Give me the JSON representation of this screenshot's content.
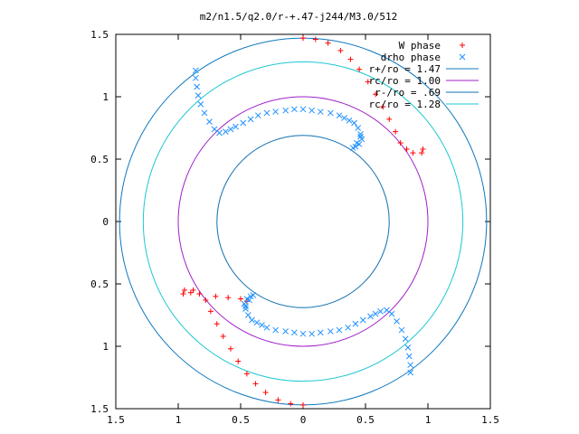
{
  "chart_data": {
    "type": "scatter",
    "title": "m2/n1.5/q2.0/r-+.47-j244/M3.0/512",
    "xlabel": "",
    "ylabel": "",
    "xlim": [
      -1.5,
      1.5
    ],
    "ylim": [
      -1.5,
      1.5
    ],
    "grid": false,
    "legend_position": "top-right",
    "x_tick_labels": [
      "1.5",
      "1",
      "0.5",
      "0",
      "0.5",
      "1",
      "1.5"
    ],
    "x_tick_values": [
      -1.5,
      -1,
      -0.5,
      0,
      0.5,
      1,
      1.5
    ],
    "y_tick_labels": [
      "1.5",
      "1",
      "0.5",
      "0",
      "0.5",
      "1",
      "1.5"
    ],
    "y_tick_values": [
      1.5,
      1,
      0.5,
      0,
      -0.5,
      -1,
      -1.5
    ],
    "circles": [
      {
        "name": "r+/ro = 1.47",
        "radius": 1.47,
        "color": "#0f78be"
      },
      {
        "name": "rc/ro = 1.00",
        "radius": 1.0,
        "color": "#a020c8"
      },
      {
        "name": "r-/ro = .69",
        "radius": 0.69,
        "color": "#0f6fb0"
      },
      {
        "name": "rc/ro = 1.28",
        "radius": 1.28,
        "color": "#1ec8d2"
      }
    ],
    "series": [
      {
        "name": "W phase",
        "marker": "+",
        "color": "#ff0000",
        "points": [
          [
            0.0,
            1.47
          ],
          [
            0.1,
            1.46
          ],
          [
            0.2,
            1.43
          ],
          [
            0.3,
            1.37
          ],
          [
            0.38,
            1.3
          ],
          [
            0.45,
            1.22
          ],
          [
            0.52,
            1.12
          ],
          [
            0.58,
            1.02
          ],
          [
            0.64,
            0.92
          ],
          [
            0.69,
            0.82
          ],
          [
            0.74,
            0.72
          ],
          [
            0.78,
            0.63
          ],
          [
            0.83,
            0.58
          ],
          [
            0.88,
            0.55
          ],
          [
            0.95,
            0.55
          ],
          [
            0.96,
            0.58
          ],
          [
            0.0,
            -1.47
          ],
          [
            -0.1,
            -1.46
          ],
          [
            -0.2,
            -1.43
          ],
          [
            -0.3,
            -1.37
          ],
          [
            -0.38,
            -1.3
          ],
          [
            -0.45,
            -1.22
          ],
          [
            -0.52,
            -1.12
          ],
          [
            -0.58,
            -1.02
          ],
          [
            -0.64,
            -0.92
          ],
          [
            -0.69,
            -0.82
          ],
          [
            -0.74,
            -0.72
          ],
          [
            -0.78,
            -0.63
          ],
          [
            -0.83,
            -0.58
          ],
          [
            -0.88,
            -0.55
          ],
          [
            -0.95,
            -0.55
          ],
          [
            -0.96,
            -0.58
          ],
          [
            -0.5,
            -0.62
          ],
          [
            -0.6,
            -0.61
          ],
          [
            -0.7,
            -0.6
          ],
          [
            -0.9,
            -0.57
          ],
          [
            -0.45,
            -0.64
          ]
        ]
      },
      {
        "name": "drho phase",
        "marker": "x",
        "color": "#1e90ff",
        "points": [
          [
            -0.86,
            1.21
          ],
          [
            -0.86,
            1.15
          ],
          [
            -0.85,
            1.08
          ],
          [
            -0.84,
            1.01
          ],
          [
            -0.82,
            0.94
          ],
          [
            -0.79,
            0.87
          ],
          [
            -0.75,
            0.8
          ],
          [
            -0.71,
            0.74
          ],
          [
            -0.67,
            0.71
          ],
          [
            -0.62,
            0.72
          ],
          [
            -0.58,
            0.74
          ],
          [
            -0.54,
            0.76
          ],
          [
            -0.48,
            0.79
          ],
          [
            -0.42,
            0.82
          ],
          [
            -0.36,
            0.85
          ],
          [
            -0.29,
            0.87
          ],
          [
            -0.22,
            0.88
          ],
          [
            -0.14,
            0.89
          ],
          [
            -0.07,
            0.9
          ],
          [
            0.0,
            0.9
          ],
          [
            0.07,
            0.89
          ],
          [
            0.14,
            0.88
          ],
          [
            0.22,
            0.87
          ],
          [
            0.29,
            0.85
          ],
          [
            0.33,
            0.83
          ],
          [
            0.37,
            0.81
          ],
          [
            0.41,
            0.79
          ],
          [
            0.44,
            0.75
          ],
          [
            0.46,
            0.7
          ],
          [
            0.47,
            0.66
          ],
          [
            0.45,
            0.62
          ],
          [
            0.42,
            0.6
          ],
          [
            0.4,
            0.59
          ],
          [
            0.43,
            0.63
          ],
          [
            0.46,
            0.68
          ],
          [
            0.86,
            -1.21
          ],
          [
            0.86,
            -1.15
          ],
          [
            0.85,
            -1.08
          ],
          [
            0.84,
            -1.01
          ],
          [
            0.82,
            -0.94
          ],
          [
            0.79,
            -0.87
          ],
          [
            0.75,
            -0.8
          ],
          [
            0.71,
            -0.74
          ],
          [
            0.67,
            -0.71
          ],
          [
            0.62,
            -0.72
          ],
          [
            0.58,
            -0.74
          ],
          [
            0.54,
            -0.76
          ],
          [
            0.48,
            -0.79
          ],
          [
            0.42,
            -0.82
          ],
          [
            0.36,
            -0.85
          ],
          [
            0.29,
            -0.87
          ],
          [
            0.22,
            -0.88
          ],
          [
            0.14,
            -0.89
          ],
          [
            0.07,
            -0.9
          ],
          [
            0.0,
            -0.9
          ],
          [
            -0.07,
            -0.89
          ],
          [
            -0.14,
            -0.88
          ],
          [
            -0.22,
            -0.87
          ],
          [
            -0.29,
            -0.85
          ],
          [
            -0.33,
            -0.83
          ],
          [
            -0.37,
            -0.81
          ],
          [
            -0.41,
            -0.79
          ],
          [
            -0.44,
            -0.75
          ],
          [
            -0.46,
            -0.7
          ],
          [
            -0.47,
            -0.66
          ],
          [
            -0.45,
            -0.62
          ],
          [
            -0.42,
            -0.6
          ],
          [
            -0.4,
            -0.59
          ],
          [
            -0.43,
            -0.63
          ],
          [
            -0.46,
            -0.68
          ]
        ]
      }
    ],
    "legend": [
      {
        "label": "W phase",
        "kind": "point",
        "marker": "+",
        "color": "#ff0000"
      },
      {
        "label": "drho phase",
        "kind": "point",
        "marker": "x",
        "color": "#1e90ff"
      },
      {
        "label": "r+/ro = 1.47",
        "kind": "line",
        "color": "#0f78be"
      },
      {
        "label": "rc/ro = 1.00",
        "kind": "line",
        "color": "#a020c8"
      },
      {
        "label": "r-/ro = .69",
        "kind": "line",
        "color": "#0f6fb0"
      },
      {
        "label": "rc/ro = 1.28",
        "kind": "line",
        "color": "#1ec8d2"
      }
    ]
  }
}
